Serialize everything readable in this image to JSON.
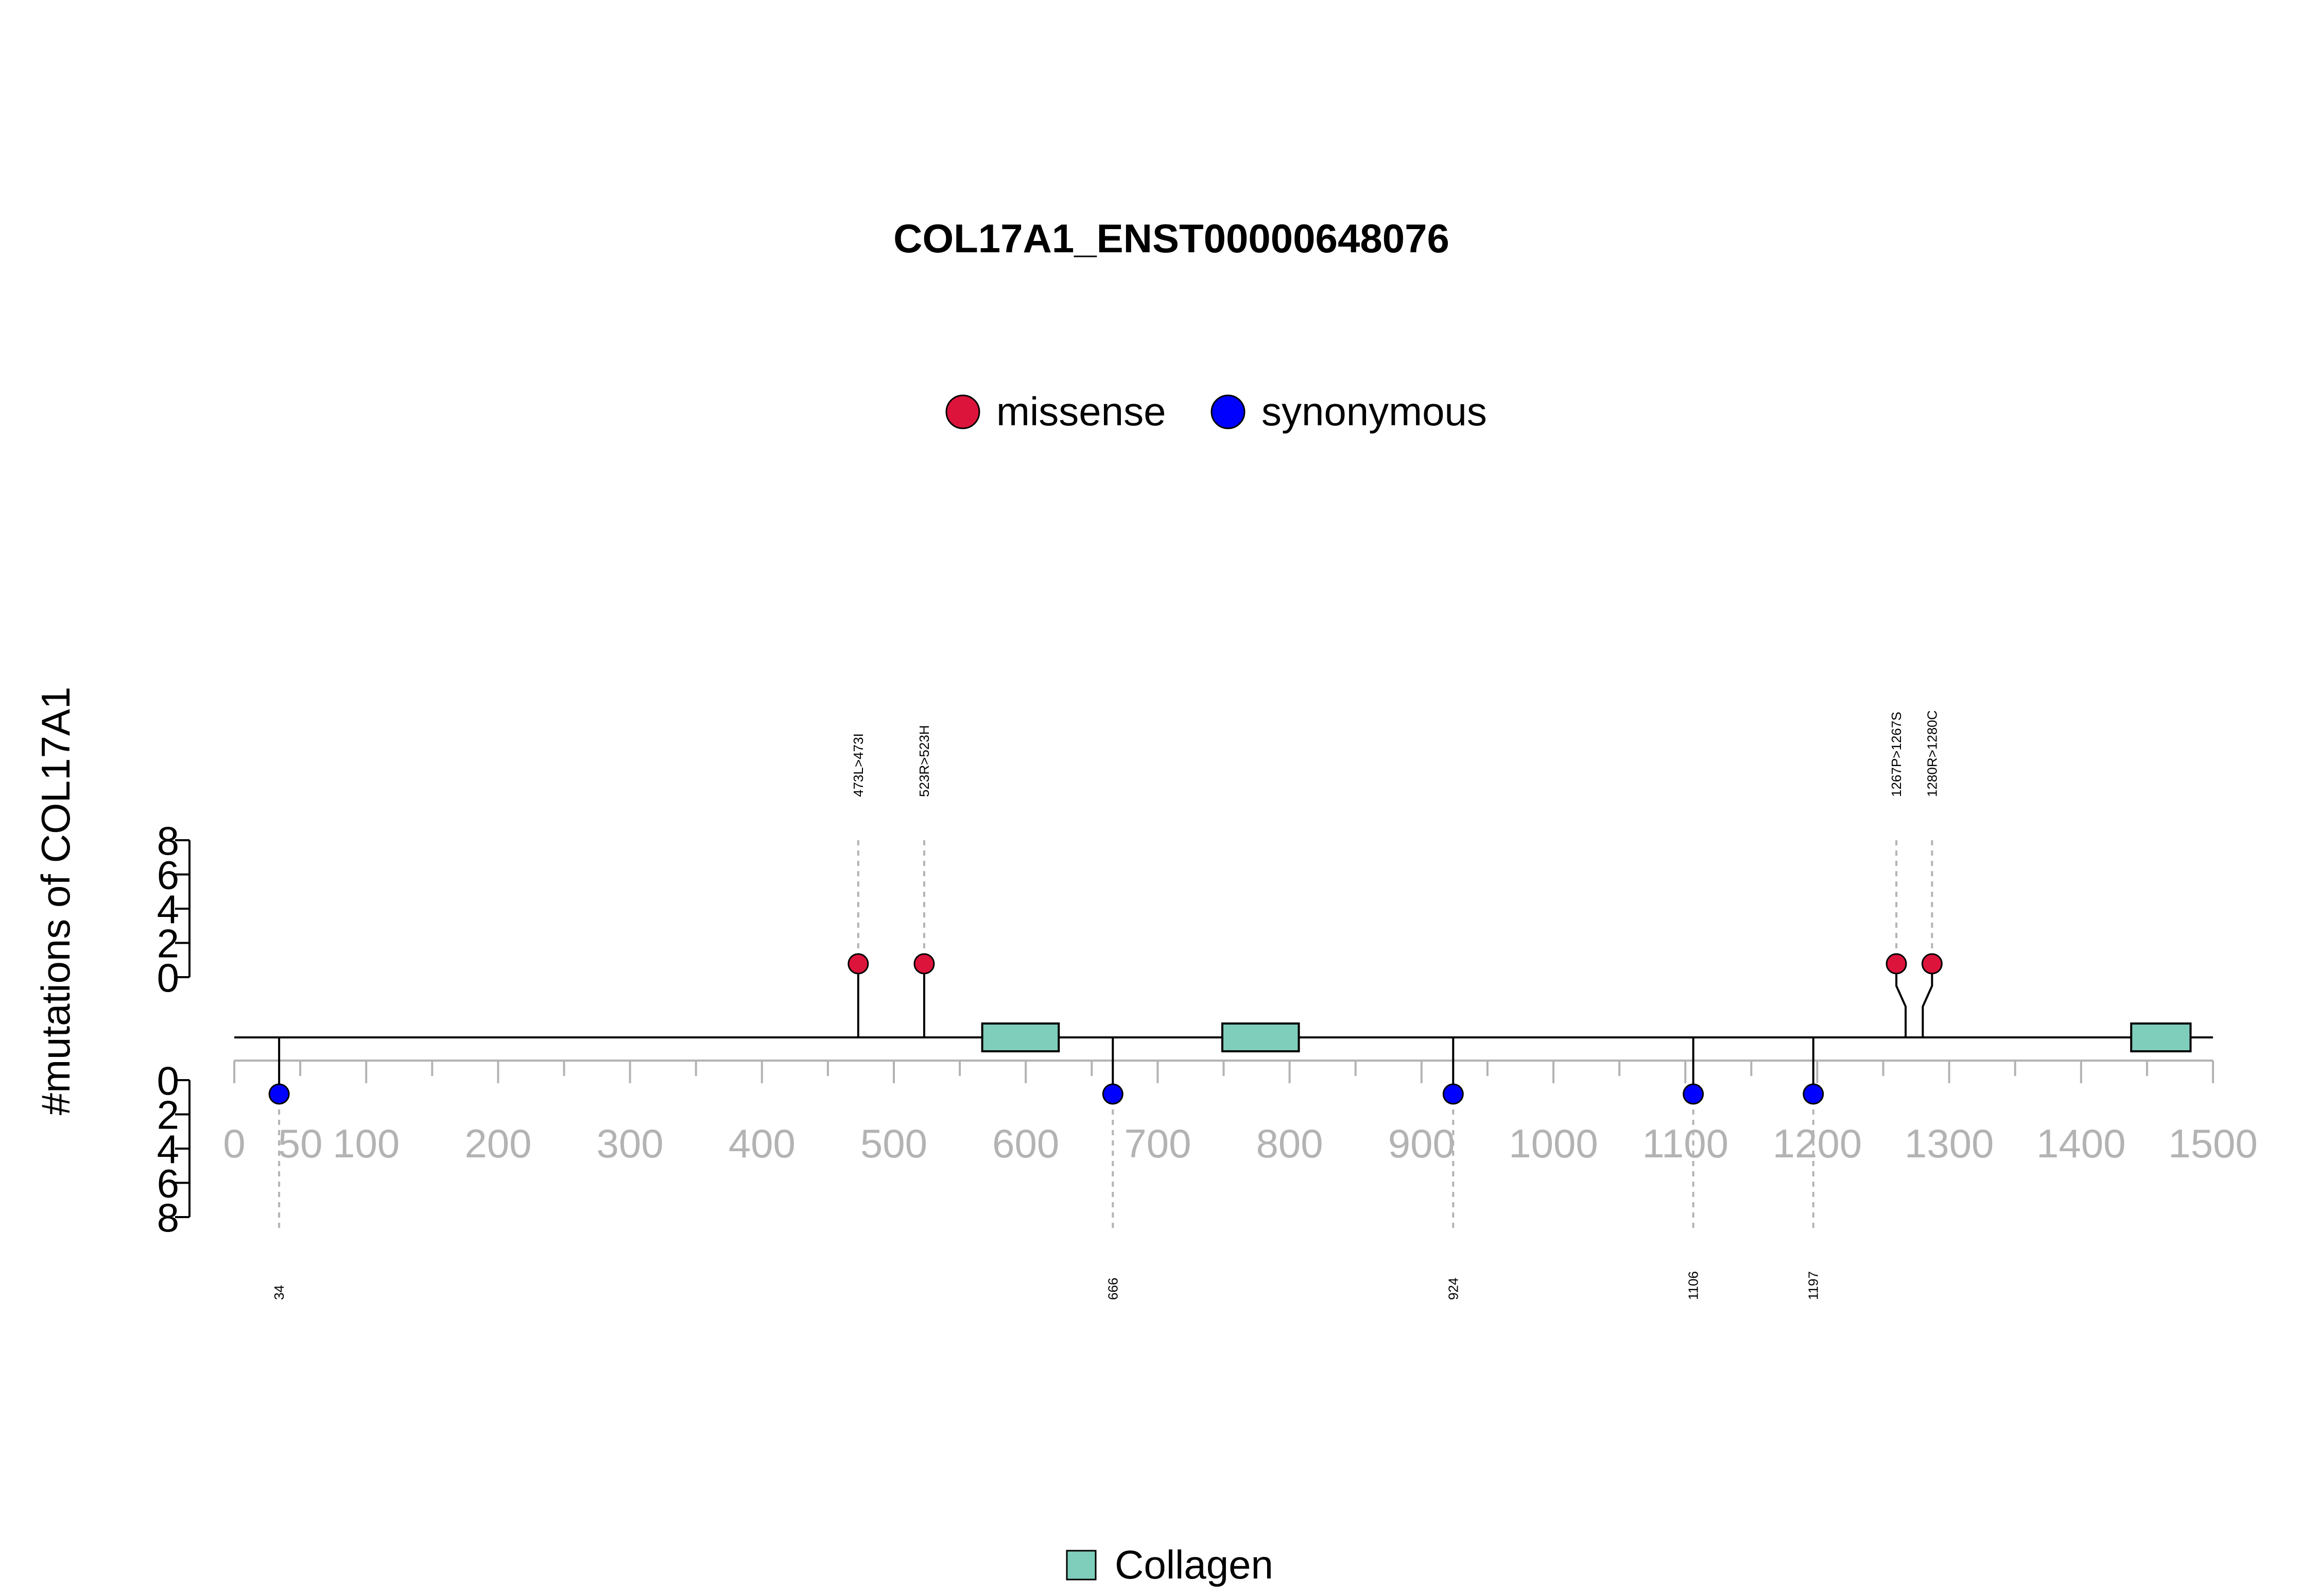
{
  "chart_data": {
    "type": "lollipop",
    "title": "COL17A1_ENST00000648076",
    "ylabel": "#mutations of COL17A1",
    "legend": [
      {
        "label": "missense",
        "color": "#dc143c"
      },
      {
        "label": "synonymous",
        "color": "#0000ff"
      }
    ],
    "xlim": [
      0,
      1500
    ],
    "x_ticks": [
      0,
      50,
      100,
      200,
      300,
      400,
      500,
      600,
      700,
      800,
      900,
      1000,
      1100,
      1200,
      1300,
      1400,
      1500
    ],
    "y_ticks_top": [
      "0",
      "2",
      "4",
      "6",
      "8"
    ],
    "y_ticks_bottom": [
      "0",
      "2",
      "4",
      "6",
      "8"
    ],
    "ylim": [
      0,
      8
    ],
    "mutations_top": [
      {
        "position": 473,
        "label": "473L>473I",
        "type": "missense",
        "count": 1
      },
      {
        "position": 523,
        "label": "523R>523H",
        "type": "missense",
        "count": 1
      },
      {
        "position": 1267,
        "label": "1267P>1267S",
        "type": "missense",
        "count": 1
      },
      {
        "position": 1280,
        "label": "1280R>1280C",
        "type": "missense",
        "count": 1
      }
    ],
    "mutations_bottom": [
      {
        "position": 34,
        "label": "34",
        "type": "synonymous",
        "count": 1
      },
      {
        "position": 666,
        "label": "666",
        "type": "synonymous",
        "count": 1
      },
      {
        "position": 924,
        "label": "924",
        "type": "synonymous",
        "count": 1
      },
      {
        "position": 1106,
        "label": "1106",
        "type": "synonymous",
        "count": 1
      },
      {
        "position": 1197,
        "label": "1197",
        "type": "synonymous",
        "count": 1
      }
    ],
    "domains": [
      {
        "name": "Collagen",
        "start": 567,
        "end": 625,
        "color": "#7fcdbb"
      },
      {
        "name": "Collagen",
        "start": 749,
        "end": 807,
        "color": "#7fcdbb"
      },
      {
        "name": "Collagen",
        "start": 1438,
        "end": 1483,
        "color": "#7fcdbb"
      }
    ],
    "domain_legend": [
      {
        "label": "Collagen",
        "color": "#7fcdbb"
      }
    ]
  }
}
